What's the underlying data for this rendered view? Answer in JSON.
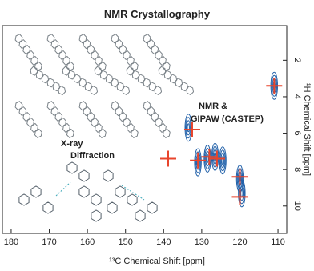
{
  "chart_data": {
    "type": "scatter",
    "title": "NMR Crystallography",
    "xlabel": "¹³C Chemical Shift [ppm]",
    "ylabel": "¹H Chemical Shift [ppm]",
    "annotations": [
      "NMR &",
      "GIPAW (CASTEP)",
      "X-ray",
      "Diffraction"
    ],
    "xlim": [
      182.3,
      107.7
    ],
    "xticks": [
      180,
      170,
      160,
      150,
      140,
      130,
      120,
      110
    ],
    "ylim": [
      0.1,
      11.5
    ],
    "yticks": [
      2,
      4,
      6,
      8,
      10
    ],
    "series": [
      {
        "marker": "contour",
        "color": "#1f5fa8",
        "x": [
          111,
          133.5,
          131,
          128.5,
          126.5,
          124.5,
          120,
          119.5
        ],
        "y": [
          3.4,
          5.7,
          7.6,
          7.4,
          7.3,
          7.5,
          8.5,
          9.3
        ]
      },
      {
        "marker": "plus",
        "color": "#e8452c",
        "x": [
          111,
          132.5,
          138.8,
          131,
          128,
          126,
          120,
          120
        ],
        "y": [
          3.4,
          5.8,
          7.4,
          7.5,
          7.3,
          7.4,
          8.4,
          9.5
        ]
      }
    ]
  }
}
